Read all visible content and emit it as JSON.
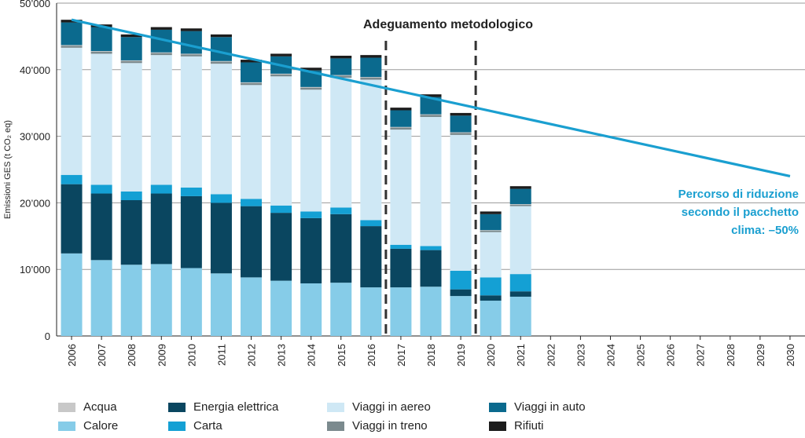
{
  "chart_data": {
    "type": "bar",
    "stacked": true,
    "ylabel": "Emissioni GES (t CO₂ eq)",
    "ylim": [
      0,
      50000
    ],
    "yticks": [
      0,
      10000,
      20000,
      30000,
      40000,
      50000
    ],
    "ytick_labels": [
      "0",
      "10’000",
      "20’000",
      "30’000",
      "40’000",
      "50’000"
    ],
    "categories": [
      "2006",
      "2007",
      "2008",
      "2009",
      "2010",
      "2011",
      "2012",
      "2013",
      "2014",
      "2015",
      "2016",
      "2017",
      "2018",
      "2019",
      "2020",
      "2021",
      "2022",
      "2023",
      "2024",
      "2025",
      "2026",
      "2027",
      "2028",
      "2029",
      "2030"
    ],
    "series": [
      {
        "name": "Calore",
        "color": "#86cce8",
        "values": [
          12400,
          11400,
          10700,
          10800,
          10200,
          9400,
          8800,
          8300,
          7900,
          8000,
          7300,
          7300,
          7400,
          6000,
          5300,
          5900,
          0,
          0,
          0,
          0,
          0,
          0,
          0,
          0,
          0
        ]
      },
      {
        "name": "Energia elettrica",
        "color": "#0a4660",
        "values": [
          10400,
          10000,
          9700,
          10600,
          10800,
          10600,
          10700,
          10200,
          9800,
          10300,
          9200,
          5800,
          5500,
          1000,
          800,
          800,
          0,
          0,
          0,
          0,
          0,
          0,
          0,
          0,
          0
        ]
      },
      {
        "name": "Carta",
        "color": "#14a0d4",
        "values": [
          1400,
          1300,
          1300,
          1300,
          1300,
          1300,
          1100,
          1100,
          1000,
          1000,
          900,
          600,
          600,
          2800,
          2700,
          2600,
          0,
          0,
          0,
          0,
          0,
          0,
          0,
          0,
          0
        ]
      },
      {
        "name": "Viaggi in aereo",
        "color": "#cfe8f5",
        "values": [
          19100,
          19700,
          19300,
          19500,
          19700,
          19600,
          17100,
          19400,
          18300,
          19500,
          21100,
          17300,
          19400,
          20400,
          6800,
          10200,
          0,
          0,
          0,
          0,
          0,
          0,
          0,
          0,
          0
        ]
      },
      {
        "name": "Viaggi in treno",
        "color": "#7b8a8e",
        "values": [
          300,
          300,
          300,
          300,
          300,
          300,
          300,
          300,
          300,
          300,
          300,
          300,
          300,
          300,
          200,
          200,
          0,
          0,
          0,
          0,
          0,
          0,
          0,
          0,
          0
        ]
      },
      {
        "name": "Acqua",
        "color": "#c8c8c8",
        "values": [
          100,
          100,
          100,
          100,
          100,
          100,
          100,
          100,
          100,
          100,
          100,
          100,
          100,
          100,
          100,
          100,
          0,
          0,
          0,
          0,
          0,
          0,
          0,
          0,
          0
        ]
      },
      {
        "name": "Viaggi in auto",
        "color": "#0b6a8e",
        "values": [
          3400,
          3600,
          3500,
          3400,
          3400,
          3600,
          3000,
          2600,
          2500,
          2500,
          2900,
          2500,
          2600,
          2500,
          2400,
          2300,
          0,
          0,
          0,
          0,
          0,
          0,
          0,
          0,
          0
        ]
      },
      {
        "name": "Rifiuti",
        "color": "#1c1c1c",
        "values": [
          400,
          400,
          400,
          400,
          400,
          400,
          400,
          400,
          400,
          400,
          400,
          400,
          400,
          400,
          400,
          400,
          0,
          0,
          0,
          0,
          0,
          0,
          0,
          0,
          0
        ]
      }
    ],
    "reduction_path": {
      "from": {
        "x": "2006",
        "y": 47500
      },
      "to": {
        "x": "2030",
        "y": 24000
      },
      "color": "#1a9fd0"
    },
    "method_change_markers": [
      {
        "between": [
          "2016",
          "2017"
        ]
      },
      {
        "between": [
          "2019",
          "2020"
        ]
      }
    ],
    "annotations": {
      "method_change": "Adeguamento metodologico",
      "reduction_path": [
        "Percorso di riduzione",
        "secondo il pacchetto",
        "clima: –50%"
      ]
    },
    "legend": [
      {
        "name": "Acqua",
        "color": "#c8c8c8"
      },
      {
        "name": "Energia elettrica",
        "color": "#0a4660"
      },
      {
        "name": "Viaggi in aereo",
        "color": "#cfe8f5"
      },
      {
        "name": "Viaggi in auto",
        "color": "#0b6a8e"
      },
      {
        "name": "Calore",
        "color": "#86cce8"
      },
      {
        "name": "Carta",
        "color": "#14a0d4"
      },
      {
        "name": "Viaggi in treno",
        "color": "#7b8a8e"
      },
      {
        "name": "Rifiuti",
        "color": "#1c1c1c"
      }
    ]
  }
}
